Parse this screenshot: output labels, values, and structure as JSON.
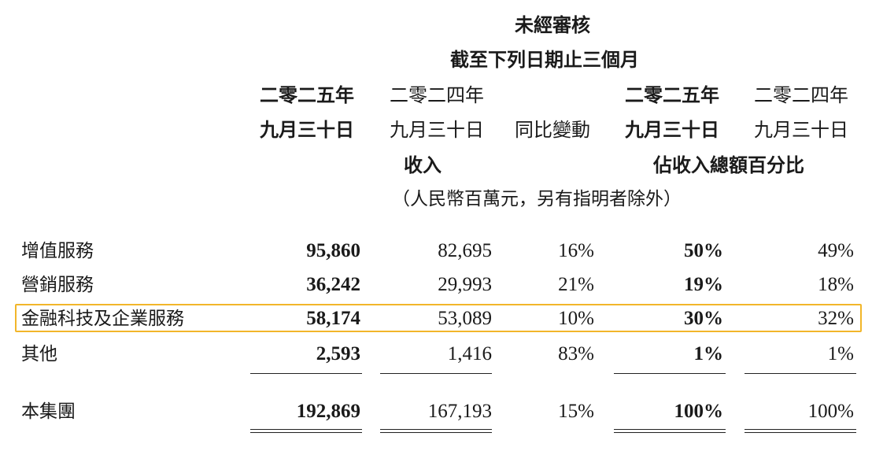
{
  "header": {
    "unaudited": "未經審核",
    "period": "截至下列日期止三個月",
    "col_2025_year": "二零二五年",
    "col_2025_date": "九月三十日",
    "col_2024_year": "二零二四年",
    "col_2024_date": "九月三十日",
    "yoy_change": "同比變動",
    "pct_2025_year": "二零二五年",
    "pct_2025_date": "九月三十日",
    "pct_2024_year": "二零二四年",
    "pct_2024_date": "九月三十日",
    "revenue": "收入",
    "pct_of_total": "佔收入總額百分比",
    "unit_note": "（人民幣百萬元，另有指明者除外）"
  },
  "rows": [
    {
      "label": "增值服務",
      "rev_2025": "95,860",
      "rev_2024": "82,695",
      "yoy": "16%",
      "pct_2025": "50%",
      "pct_2024": "49%"
    },
    {
      "label": "營銷服務",
      "rev_2025": "36,242",
      "rev_2024": "29,993",
      "yoy": "21%",
      "pct_2025": "19%",
      "pct_2024": "18%"
    },
    {
      "label": "金融科技及企業服務",
      "rev_2025": "58,174",
      "rev_2024": "53,089",
      "yoy": "10%",
      "pct_2025": "30%",
      "pct_2024": "32%"
    },
    {
      "label": "其他",
      "rev_2025": "2,593",
      "rev_2024": "1,416",
      "yoy": "83%",
      "pct_2025": "1%",
      "pct_2024": "1%"
    }
  ],
  "total": {
    "label": "本集團",
    "rev_2025": "192,869",
    "rev_2024": "167,193",
    "yoy": "15%",
    "pct_2025": "100%",
    "pct_2024": "100%"
  },
  "colors": {
    "highlight": "#f2b62a"
  }
}
